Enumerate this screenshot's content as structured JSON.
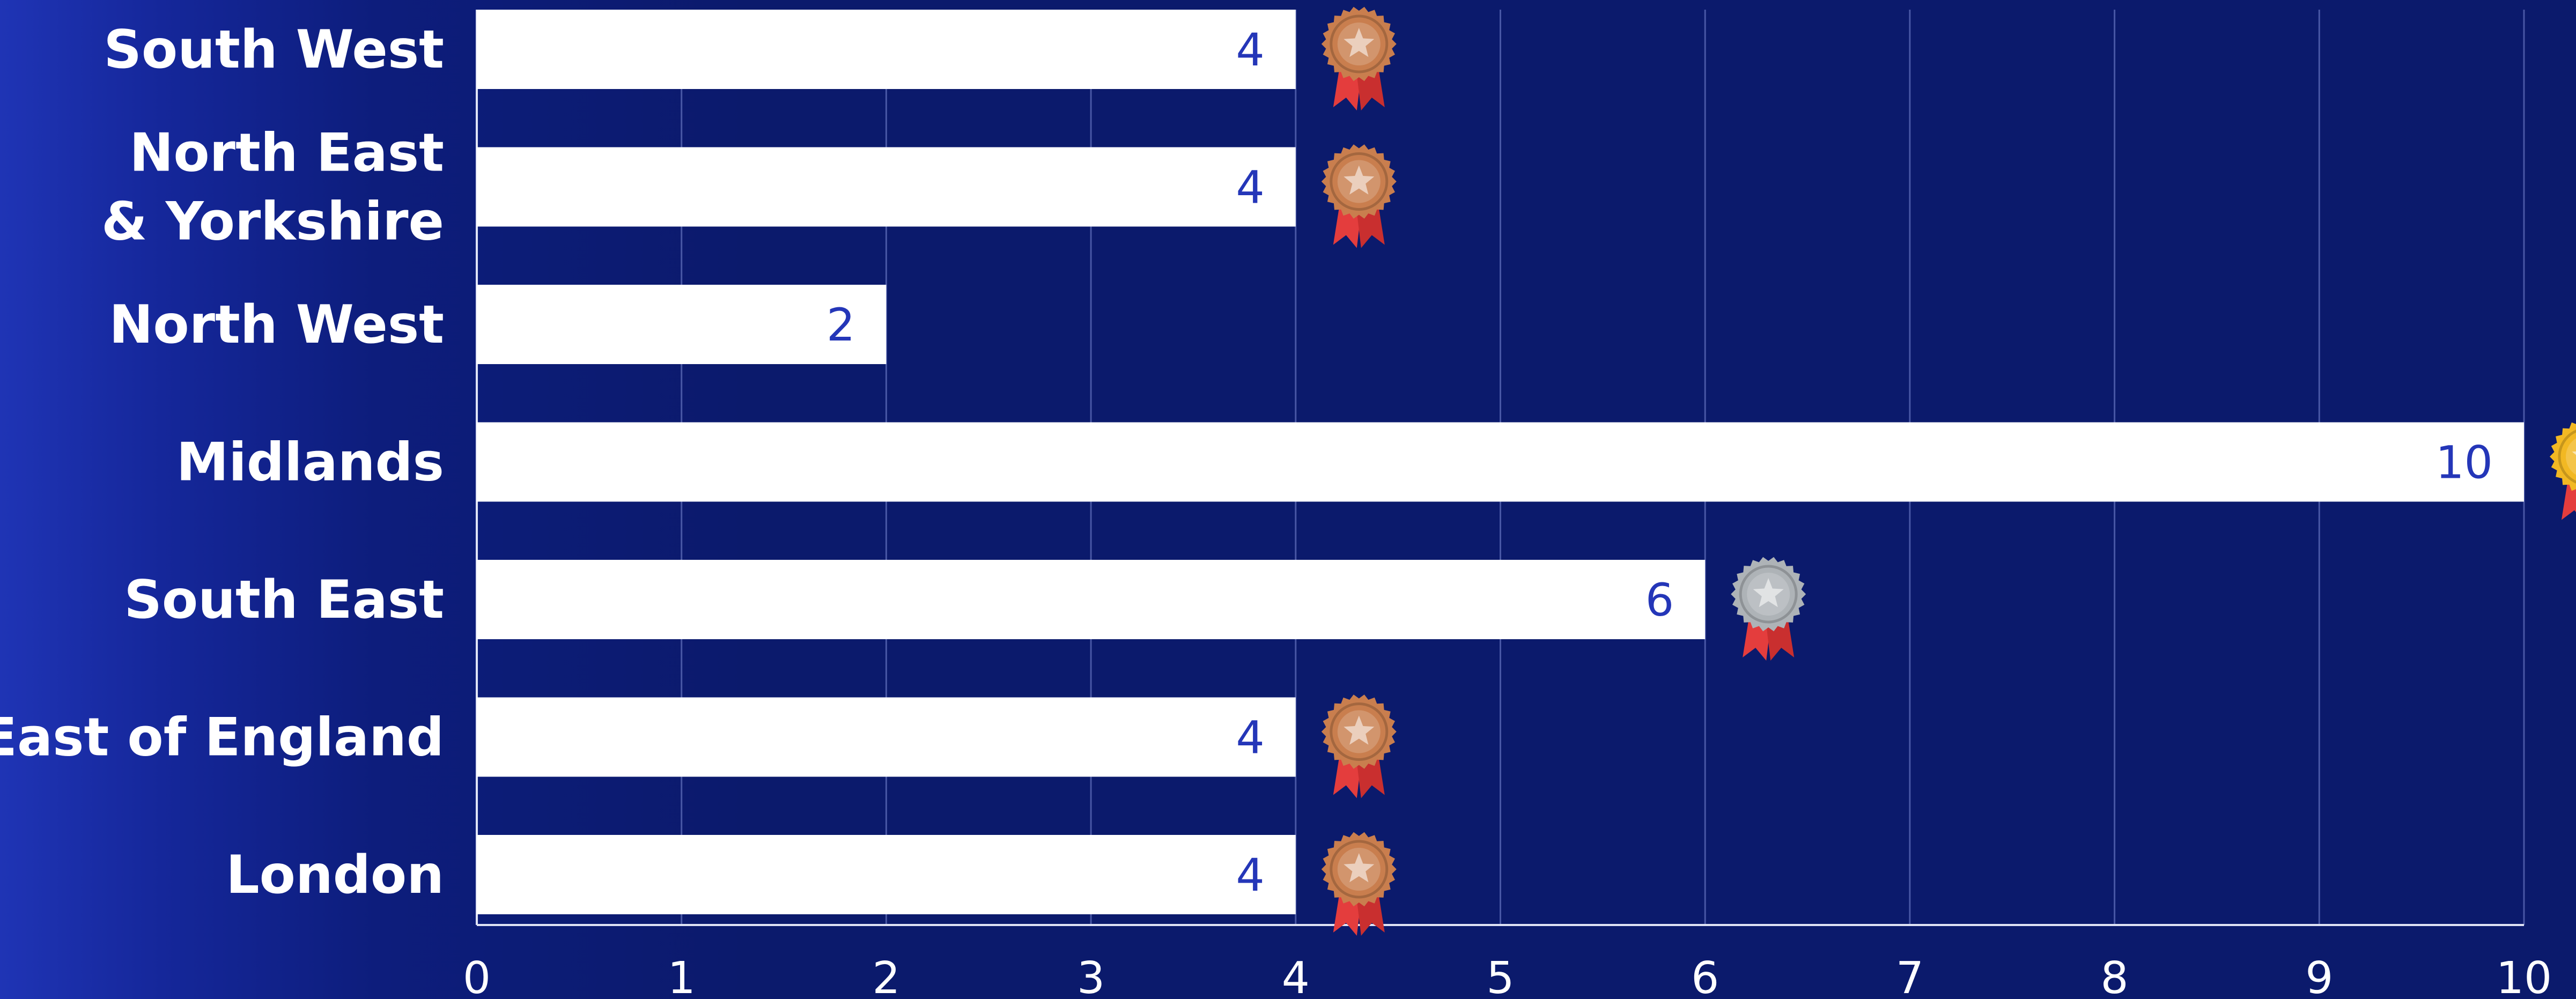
{
  "chart_data": {
    "type": "bar",
    "orientation": "horizontal",
    "title": "",
    "xlabel": "",
    "ylabel": "",
    "categories": [
      [
        "South West"
      ],
      [
        "North East",
        "& Yorkshire"
      ],
      [
        "North West"
      ],
      [
        "Midlands"
      ],
      [
        "South East"
      ],
      [
        "East of England"
      ],
      [
        "London"
      ]
    ],
    "values": [
      4,
      4,
      2,
      10,
      6,
      4,
      4
    ],
    "data_labels": [
      "4",
      "4",
      "2",
      "10",
      "6",
      "4",
      "4"
    ],
    "medals": [
      "bronze",
      "bronze",
      "none",
      "gold",
      "silver",
      "bronze",
      "bronze"
    ],
    "xlim": [
      0,
      10
    ],
    "x_ticks": [
      "0",
      "1",
      "2",
      "3",
      "4",
      "5",
      "6",
      "7",
      "8",
      "9",
      "10"
    ],
    "grid": "vertical",
    "legend": "none"
  },
  "colors": {
    "background": "#0b1a6c",
    "bar": "#ffffff",
    "value_text": "#2436b8",
    "label_text": "#ffffff",
    "gold_medal": "#f2b823",
    "silver_medal": "#aeb3b7",
    "bronze_medal": "#c97e4e",
    "ribbon": "#e43d3d"
  },
  "icons": {
    "gold": "gold-medal-icon",
    "silver": "silver-medal-icon",
    "bronze": "bronze-medal-icon"
  }
}
